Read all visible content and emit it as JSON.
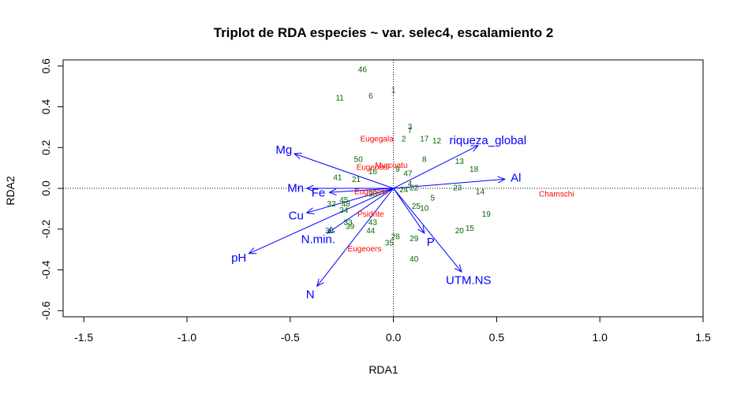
{
  "chart_data": {
    "type": "scatter",
    "title": "Triplot de RDA especies ~ var. selec4, escalamiento 2",
    "xlabel": "RDA1",
    "ylabel": "RDA2",
    "xlim": [
      -1.6,
      1.5
    ],
    "ylim": [
      -0.63,
      0.63
    ],
    "xticks": [
      -1.5,
      -1.0,
      -0.5,
      0.0,
      0.5,
      1.0,
      1.5
    ],
    "xtick_labels": [
      "-1.5",
      "-1.0",
      "-0.5",
      "0.0",
      "0.5",
      "1.0",
      "1.5"
    ],
    "yticks": [
      -0.6,
      -0.4,
      -0.2,
      0.0,
      0.2,
      0.4,
      0.6
    ],
    "ytick_labels": [
      "-0.6",
      "-0.4",
      "-0.2",
      "0.0",
      "0.2",
      "0.4",
      "0.6"
    ],
    "reference_lines": {
      "x": 0,
      "y": 0,
      "style": "dotted"
    },
    "colors": {
      "sites": "#006400",
      "species": "#ff0000",
      "env": "#0000ff"
    },
    "sites": [
      {
        "label": "46",
        "x": -0.15,
        "y": 0.58
      },
      {
        "label": "1",
        "x": 0.0,
        "y": 0.48
      },
      {
        "label": "6",
        "x": -0.11,
        "y": 0.45
      },
      {
        "label": "11",
        "x": -0.26,
        "y": 0.44
      },
      {
        "label": "3",
        "x": 0.08,
        "y": 0.3
      },
      {
        "label": "7",
        "x": 0.08,
        "y": 0.28
      },
      {
        "label": "17",
        "x": 0.15,
        "y": 0.24
      },
      {
        "label": "2",
        "x": 0.05,
        "y": 0.24
      },
      {
        "label": "12",
        "x": 0.21,
        "y": 0.23
      },
      {
        "label": "8",
        "x": 0.15,
        "y": 0.14
      },
      {
        "label": "13",
        "x": 0.32,
        "y": 0.13
      },
      {
        "label": "18",
        "x": 0.39,
        "y": 0.09
      },
      {
        "label": "50",
        "x": -0.17,
        "y": 0.14
      },
      {
        "label": "9",
        "x": 0.02,
        "y": 0.09
      },
      {
        "label": "47",
        "x": 0.07,
        "y": 0.07
      },
      {
        "label": "16",
        "x": -0.1,
        "y": 0.08
      },
      {
        "label": "21",
        "x": -0.18,
        "y": 0.04
      },
      {
        "label": "41",
        "x": -0.27,
        "y": 0.05
      },
      {
        "label": "4",
        "x": 0.08,
        "y": 0.02
      },
      {
        "label": "24",
        "x": 0.05,
        "y": -0.01
      },
      {
        "label": "22",
        "x": 0.1,
        "y": 0.0
      },
      {
        "label": "23",
        "x": 0.31,
        "y": 0.0
      },
      {
        "label": "14",
        "x": 0.42,
        "y": -0.02
      },
      {
        "label": "5",
        "x": 0.19,
        "y": -0.05
      },
      {
        "label": "10",
        "x": 0.15,
        "y": -0.1
      },
      {
        "label": "25",
        "x": 0.11,
        "y": -0.09
      },
      {
        "label": "19",
        "x": 0.45,
        "y": -0.13
      },
      {
        "label": "15",
        "x": 0.37,
        "y": -0.2
      },
      {
        "label": "20",
        "x": 0.32,
        "y": -0.21
      },
      {
        "label": "29",
        "x": 0.1,
        "y": -0.25
      },
      {
        "label": "28",
        "x": 0.01,
        "y": -0.24
      },
      {
        "label": "35",
        "x": -0.02,
        "y": -0.27
      },
      {
        "label": "40",
        "x": 0.1,
        "y": -0.35
      },
      {
        "label": "30",
        "x": -0.1,
        "y": -0.03
      },
      {
        "label": "32",
        "x": -0.3,
        "y": -0.08
      },
      {
        "label": "45",
        "x": -0.24,
        "y": -0.06
      },
      {
        "label": "48",
        "x": -0.23,
        "y": -0.08
      },
      {
        "label": "34",
        "x": -0.24,
        "y": -0.11
      },
      {
        "label": "33",
        "x": -0.22,
        "y": -0.17
      },
      {
        "label": "39",
        "x": -0.21,
        "y": -0.19
      },
      {
        "label": "44",
        "x": -0.11,
        "y": -0.21
      },
      {
        "label": "43",
        "x": -0.1,
        "y": -0.17
      },
      {
        "label": "36",
        "x": -0.31,
        "y": -0.21
      }
    ],
    "species": [
      {
        "label": "Eugegala",
        "x": -0.08,
        "y": 0.24
      },
      {
        "label": "Myrcoatu",
        "x": -0.01,
        "y": 0.11
      },
      {
        "label": "Eugeoesi",
        "x": -0.1,
        "y": 0.1
      },
      {
        "label": "Eugecost",
        "x": -0.11,
        "y": -0.02
      },
      {
        "label": "Chamschi",
        "x": 0.79,
        "y": -0.03
      },
      {
        "label": "Psidrite",
        "x": -0.11,
        "y": -0.13
      },
      {
        "label": "Eugeoers",
        "x": -0.14,
        "y": -0.3
      }
    ],
    "env_vectors": [
      {
        "label": "riqueza_global",
        "x": 0.41,
        "y": 0.21
      },
      {
        "label": "Mg",
        "x": -0.48,
        "y": 0.17
      },
      {
        "label": "Al",
        "x": 0.54,
        "y": 0.045
      },
      {
        "label": "Mn",
        "x": -0.42,
        "y": 0.0
      },
      {
        "label": "Fe",
        "x": -0.31,
        "y": -0.02
      },
      {
        "label": "Cu",
        "x": -0.42,
        "y": -0.12
      },
      {
        "label": "N.min.",
        "x": -0.32,
        "y": -0.22
      },
      {
        "label": "P",
        "x": 0.15,
        "y": -0.22
      },
      {
        "label": "pH",
        "x": -0.7,
        "y": -0.32
      },
      {
        "label": "UTM.NS",
        "x": 0.33,
        "y": -0.41
      },
      {
        "label": "N",
        "x": -0.37,
        "y": -0.48
      }
    ]
  }
}
